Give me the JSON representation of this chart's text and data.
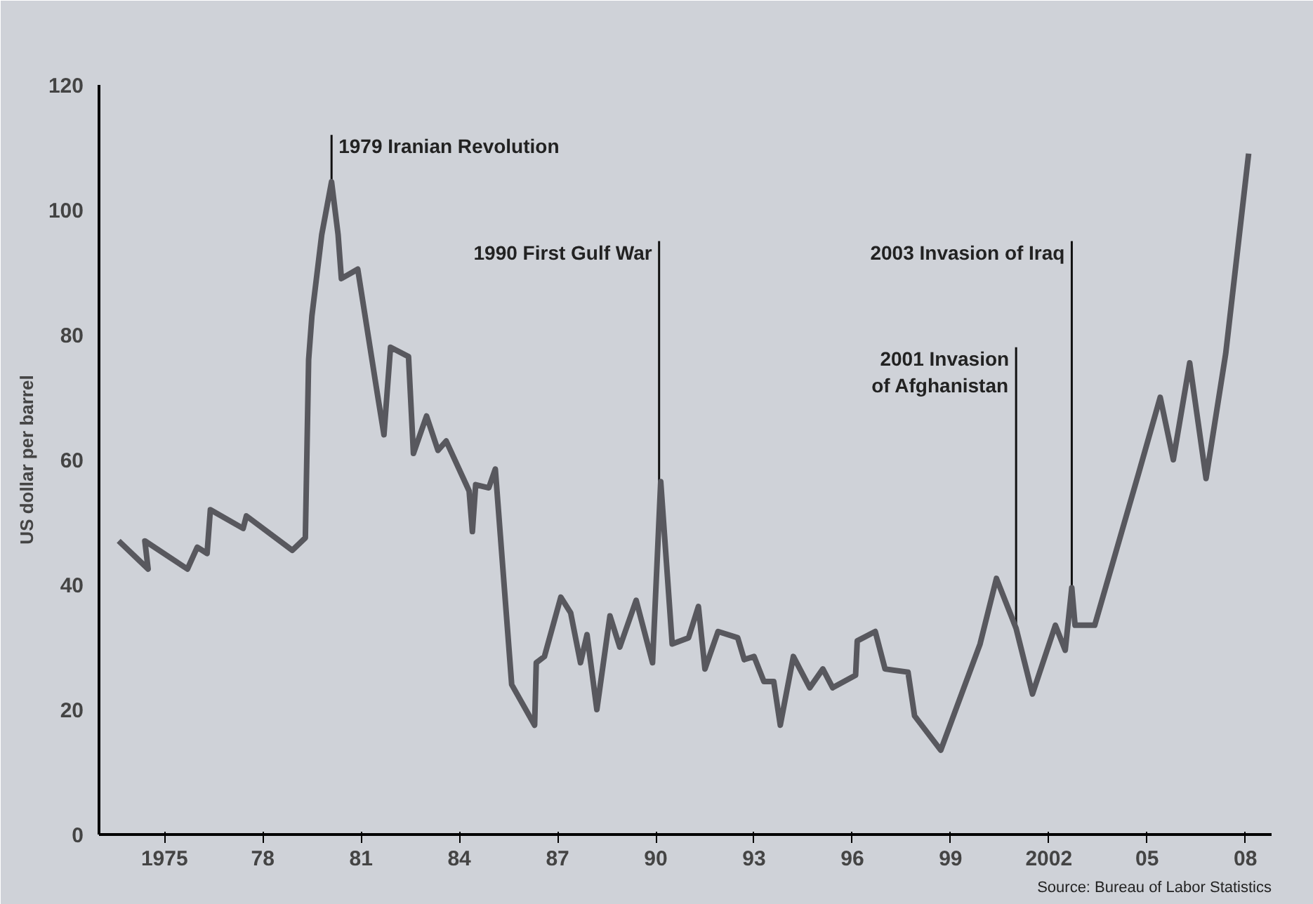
{
  "chart_data": {
    "type": "line",
    "ylabel": "US dollar per barrel",
    "x": [
      1973.6,
      1974.5,
      1974.4,
      1975.7,
      1976.0,
      1976.3,
      1976.4,
      1977.4,
      1977.5,
      1978.9,
      1979.3,
      1979.4,
      1979.5,
      1979.8,
      1980.1,
      1980.3,
      1980.4,
      1980.9,
      1981.5,
      1981.7,
      1981.9,
      1982.45,
      1982.6,
      1983.0,
      1983.35,
      1983.6,
      1984.3,
      1984.4,
      1984.5,
      1984.9,
      1985.1,
      1985.6,
      1986.3,
      1986.35,
      1986.6,
      1987.1,
      1987.4,
      1987.7,
      1987.9,
      1988.2,
      1988.6,
      1988.9,
      1989.4,
      1989.9,
      1990.15,
      1990.5,
      1991.0,
      1991.3,
      1991.5,
      1991.9,
      1992.5,
      1992.7,
      1993.0,
      1993.3,
      1993.6,
      1993.8,
      1994.2,
      1994.7,
      1995.1,
      1995.4,
      1996.1,
      1996.15,
      1996.7,
      1997.0,
      1997.7,
      1997.9,
      1998.7,
      1999.9,
      2000.4,
      2001.0,
      2001.5,
      2002.2,
      2002.5,
      2002.7,
      2002.8,
      2003.4,
      2004.75,
      2005.4,
      2005.8,
      2006.3,
      2006.8,
      2007.4,
      2008.1
    ],
    "series": [
      {
        "color": "#58585e",
        "values": [
          47,
          42.5,
          47,
          42.5,
          46,
          45,
          52,
          49,
          51,
          45.5,
          47.5,
          76,
          83,
          96,
          104.5,
          96,
          89,
          90.5,
          70.5,
          64,
          78,
          76.5,
          61,
          67,
          61.5,
          63,
          55,
          48.5,
          56,
          55.5,
          58.5,
          24,
          17.5,
          27.5,
          28.5,
          38,
          35.5,
          27.5,
          32,
          20,
          35,
          30,
          37.5,
          27.5,
          56.5,
          30.5,
          31.5,
          36.5,
          26.5,
          32.5,
          31.5,
          28,
          28.5,
          24.5,
          24.5,
          17.5,
          28.5,
          23.5,
          26.5,
          23.5,
          25.5,
          31,
          32.5,
          26.5,
          26,
          19,
          13.5,
          30.5,
          41,
          33,
          22.5,
          33.5,
          29.5,
          39.5,
          33.5,
          33.5,
          58,
          70,
          60,
          75.5,
          57,
          77,
          109
        ]
      }
    ],
    "xlim": [
      1973,
      2008.8
    ],
    "ylim": [
      0,
      120
    ],
    "xticks": [
      {
        "value": 1975,
        "label": "1975"
      },
      {
        "value": 1978,
        "label": "78"
      },
      {
        "value": 1981,
        "label": "81"
      },
      {
        "value": 1984,
        "label": "84"
      },
      {
        "value": 1987,
        "label": "87"
      },
      {
        "value": 1990,
        "label": "90"
      },
      {
        "value": 1993,
        "label": "93"
      },
      {
        "value": 1996,
        "label": "96"
      },
      {
        "value": 1999,
        "label": "99"
      },
      {
        "value": 2002,
        "label": "2002"
      },
      {
        "value": 2005,
        "label": "05"
      },
      {
        "value": 2008,
        "label": "08"
      }
    ],
    "yticks": [
      0,
      20,
      40,
      60,
      80,
      100,
      120
    ],
    "grid": false,
    "marker": "none",
    "line_style": "solid",
    "ref_lines": [
      {
        "axis": "x",
        "value": 1980.1,
        "label": "1979 Iranian Revolution"
      },
      {
        "axis": "x",
        "value": 1990.1,
        "label": "1990 First Gulf War"
      },
      {
        "axis": "x",
        "value": 2001.0,
        "label": "2001 Invasion\nof Afghanistan"
      },
      {
        "axis": "x",
        "value": 2002.7,
        "label": "2003 Invasion of Iraq"
      }
    ],
    "annotations": [
      "Source: Bureau of Labor Statistics"
    ]
  }
}
